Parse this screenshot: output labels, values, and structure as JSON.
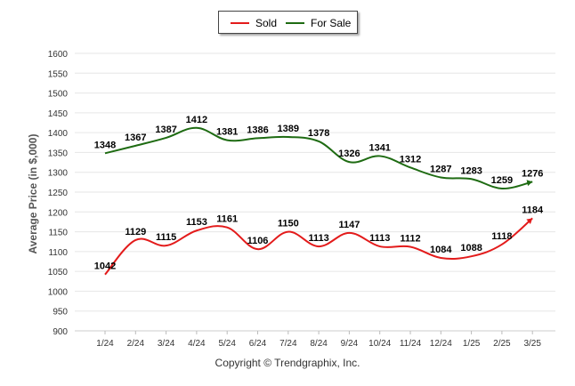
{
  "chart_data": {
    "type": "line",
    "title": "",
    "xlabel": "",
    "ylabel": "Average Price (in $,000)",
    "ylim": [
      900,
      1600
    ],
    "yticks": [
      900,
      950,
      1000,
      1050,
      1100,
      1150,
      1200,
      1250,
      1300,
      1350,
      1400,
      1450,
      1500,
      1550,
      1600
    ],
    "grid": true,
    "legend_position": "top-center",
    "categories": [
      "1/24",
      "2/24",
      "3/24",
      "4/24",
      "5/24",
      "6/24",
      "7/24",
      "8/24",
      "9/24",
      "10/24",
      "11/24",
      "12/24",
      "1/25",
      "2/25",
      "3/25"
    ],
    "series": [
      {
        "name": "Sold",
        "color": "#e31b1b",
        "values": [
          1042,
          1129,
          1115,
          1153,
          1161,
          1106,
          1150,
          1113,
          1147,
          1113,
          1112,
          1084,
          1088,
          1118,
          1184
        ]
      },
      {
        "name": "For Sale",
        "color": "#1e6b12",
        "values": [
          1348,
          1367,
          1387,
          1412,
          1381,
          1386,
          1389,
          1378,
          1326,
          1341,
          1312,
          1287,
          1283,
          1259,
          1276
        ]
      }
    ]
  },
  "footer": {
    "copyright": "Copyright © Trendgraphix, Inc."
  }
}
